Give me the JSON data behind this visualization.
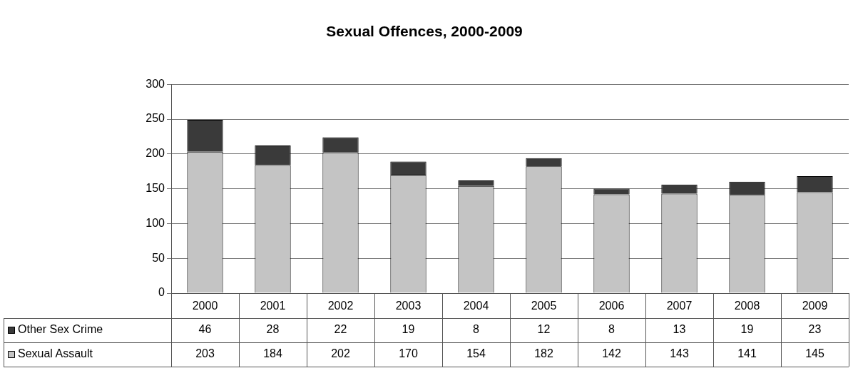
{
  "chart_data": {
    "type": "bar",
    "title": "Sexual Offences, 2000-2009",
    "stacked": true,
    "categories": [
      "2000",
      "2001",
      "2002",
      "2003",
      "2004",
      "2005",
      "2006",
      "2007",
      "2008",
      "2009"
    ],
    "series": [
      {
        "name": "Sexual Assault",
        "color": "#c4c4c4",
        "values": [
          203,
          184,
          202,
          170,
          154,
          182,
          142,
          143,
          141,
          145
        ]
      },
      {
        "name": "Other Sex Crime",
        "color": "#3a3a3a",
        "values": [
          46,
          28,
          22,
          19,
          8,
          12,
          8,
          13,
          19,
          23
        ]
      }
    ],
    "ylim": [
      0,
      300
    ],
    "yticks": [
      0,
      50,
      100,
      150,
      200,
      250,
      300
    ],
    "grid": "y",
    "legend": "bottom",
    "data_labels": true
  }
}
